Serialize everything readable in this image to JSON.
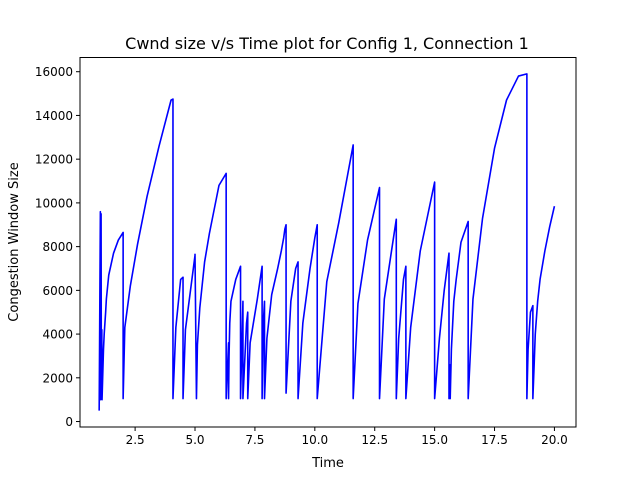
{
  "chart_data": {
    "type": "line",
    "title": "Cwnd size v/s Time plot for Config 1, Connection 1",
    "xlabel": "Time",
    "ylabel": "Congestion Window Size",
    "xlim": [
      0.2,
      20.9
    ],
    "ylim": [
      -250,
      16650
    ],
    "xticks": [
      2.5,
      5.0,
      7.5,
      10.0,
      12.5,
      15.0,
      17.5,
      20.0
    ],
    "xtick_labels": [
      "2.5",
      "5.0",
      "7.5",
      "10.0",
      "12.5",
      "15.0",
      "17.5",
      "20.0"
    ],
    "yticks": [
      0,
      2000,
      4000,
      6000,
      8000,
      10000,
      12000,
      14000,
      16000
    ],
    "ytick_labels": [
      "0",
      "2000",
      "4000",
      "6000",
      "8000",
      "10000",
      "12000",
      "14000",
      "16000"
    ],
    "grid": false,
    "series": [
      {
        "color": "#0000ff",
        "x": [
          1.0,
          1.05,
          1.06,
          1.07,
          1.08,
          1.09,
          1.1,
          1.11,
          1.12,
          1.18,
          1.21,
          1.27,
          1.3,
          1.4,
          1.6,
          1.8,
          2.0,
          2.0,
          2.07,
          2.3,
          2.6,
          3.0,
          3.5,
          4.0,
          4.08,
          4.08,
          4.2,
          4.4,
          4.5,
          4.5,
          4.6,
          5.0,
          5.0,
          5.06,
          5.1,
          5.2,
          5.4,
          5.6,
          6.0,
          6.3,
          6.3,
          6.4,
          6.4,
          6.42,
          6.45,
          6.5,
          6.7,
          6.9,
          6.9,
          7.0,
          7.0,
          7.15,
          7.2,
          7.2,
          7.3,
          7.6,
          7.8,
          7.8,
          7.85,
          7.9,
          7.9,
          8.0,
          8.2,
          8.45,
          8.6,
          8.7,
          8.75,
          8.8,
          8.8,
          9.0,
          9.2,
          9.3,
          9.3,
          9.5,
          9.8,
          10.0,
          10.1,
          10.1,
          10.5,
          11.0,
          11.6,
          11.6,
          11.8,
          12.2,
          12.7,
          12.7,
          12.9,
          13.2,
          13.4,
          13.4,
          13.5,
          13.7,
          13.8,
          13.8,
          14.0,
          14.4,
          15.0,
          15.0,
          15.2,
          15.4,
          15.6,
          15.6,
          15.63,
          15.65,
          15.7,
          15.8,
          15.9,
          16.1,
          16.4,
          16.4,
          16.6,
          17.0,
          17.5,
          18.0,
          18.5,
          18.85,
          18.85,
          18.9,
          19.0,
          19.1,
          19.1,
          19.15,
          19.2,
          19.3,
          19.4,
          19.6,
          19.8,
          20.0
        ],
        "y": [
          500,
          9600,
          1000,
          5000,
          9500,
          1500,
          1100,
          4200,
          1000,
          3300,
          4000,
          5000,
          5600,
          6700,
          7700,
          8300,
          8650,
          1050,
          4300,
          6200,
          8100,
          10300,
          12600,
          14700,
          14750,
          1050,
          4300,
          6500,
          6600,
          1050,
          4200,
          7600,
          7650,
          1050,
          3500,
          5200,
          7300,
          8600,
          10800,
          11350,
          1050,
          3600,
          1050,
          3000,
          4500,
          5500,
          6500,
          7100,
          1050,
          5500,
          1050,
          4500,
          5000,
          1050,
          3600,
          5600,
          7100,
          1050,
          4500,
          5500,
          1050,
          3800,
          5800,
          7000,
          7800,
          8400,
          8800,
          9000,
          1300,
          5500,
          7000,
          7300,
          1050,
          4500,
          7000,
          8400,
          9000,
          1050,
          6400,
          9100,
          12650,
          1050,
          5400,
          8300,
          10700,
          1050,
          5600,
          7800,
          9250,
          1050,
          3800,
          6500,
          7100,
          1050,
          4300,
          7800,
          10950,
          1050,
          3800,
          6000,
          7700,
          1050,
          2600,
          1050,
          3300,
          5500,
          6500,
          8200,
          9150,
          1050,
          5600,
          9300,
          12500,
          14700,
          15800,
          15900,
          1050,
          3300,
          5000,
          5300,
          1050,
          2500,
          4000,
          5500,
          6500,
          7800,
          8900,
          9850
        ]
      }
    ]
  }
}
